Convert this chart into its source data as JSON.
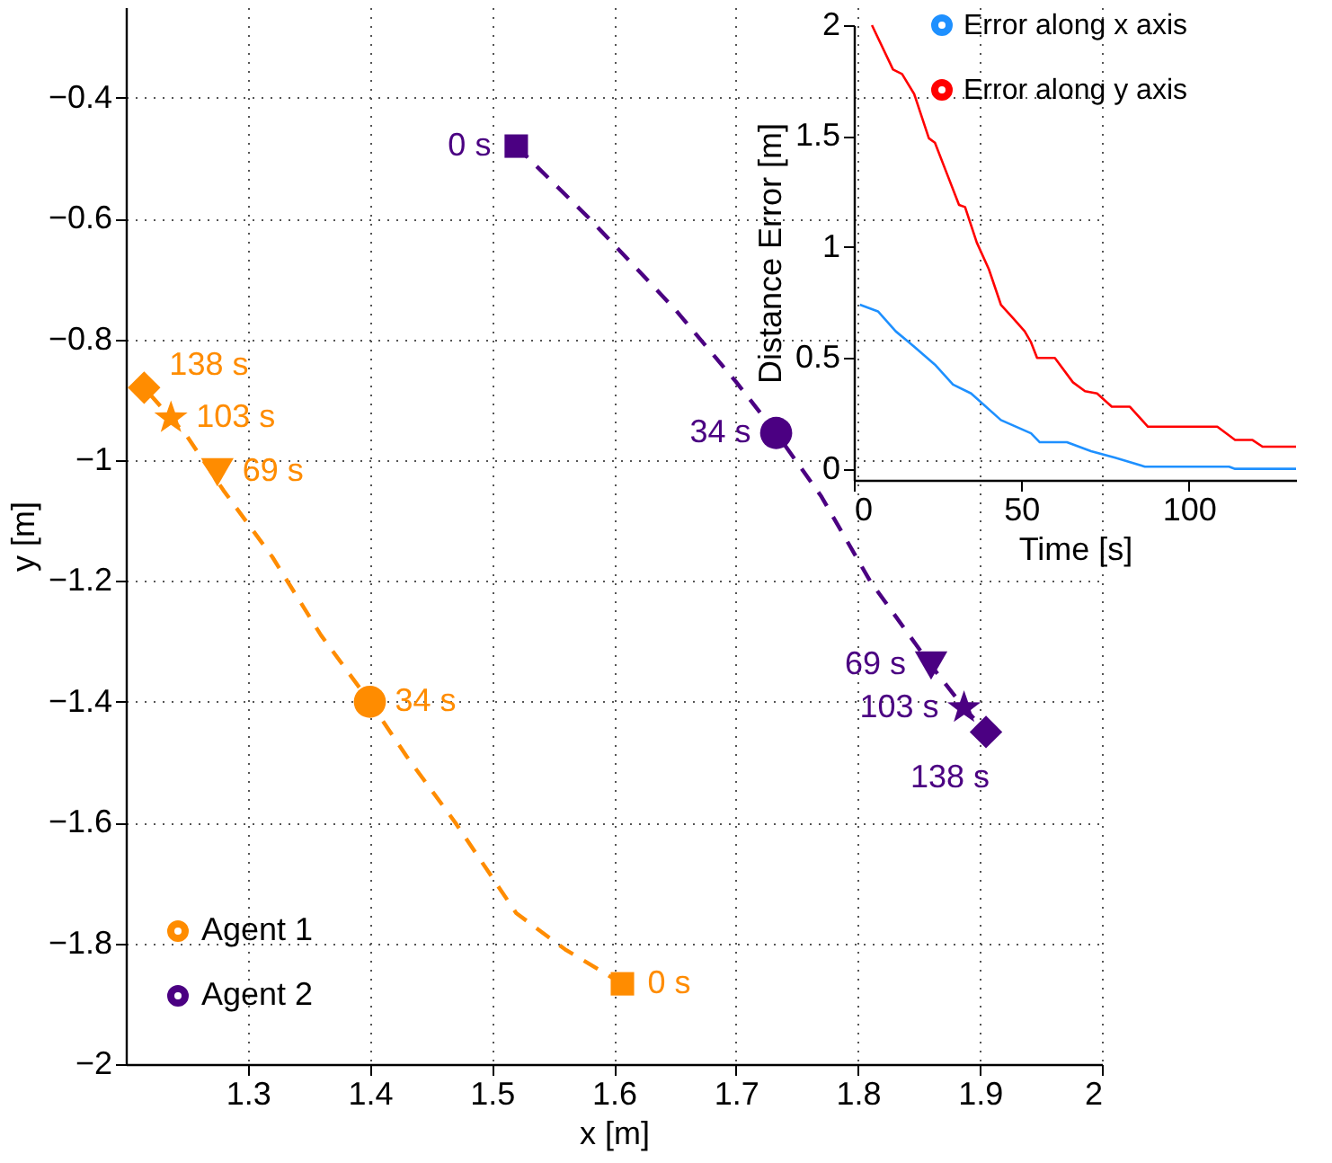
{
  "chart_data": [
    {
      "type": "line",
      "xlabel": "x [m]",
      "ylabel": "y [m]",
      "xlim": [
        1.2,
        2
      ],
      "ylim": [
        -2,
        -0.25
      ],
      "xticks": [
        1.3,
        1.4,
        1.5,
        1.6,
        1.7,
        1.8,
        1.9,
        2
      ],
      "yticks": [
        -2,
        -1.8,
        -1.6,
        -1.4,
        -1.2,
        -1,
        -0.8,
        -0.6,
        -0.4
      ],
      "grid": true,
      "legend": "bottom left",
      "annotations": [
        {
          "text": "0 s",
          "x": 1.607,
          "y": -1.867
        },
        {
          "text": "34 s",
          "x": 1.4,
          "y": -1.4
        },
        {
          "text": "69 s",
          "x": 1.275,
          "y": -1.02
        },
        {
          "text": "103 s",
          "x": 1.237,
          "y": -0.93
        },
        {
          "text": "138 s",
          "x": 1.215,
          "y": -0.88
        },
        {
          "text": "0 s",
          "x": 1.52,
          "y": -0.48
        },
        {
          "text": "34 s",
          "x": 1.733,
          "y": -0.955
        },
        {
          "text": "69 s",
          "x": 1.86,
          "y": -1.34
        },
        {
          "text": "103 s",
          "x": 1.887,
          "y": -1.41
        },
        {
          "text": "138 s",
          "x": 1.905,
          "y": -1.45
        }
      ],
      "series": [
        {
          "name": "Agent 1",
          "color": "#ff8c00",
          "line_style": "dashed",
          "marker": "none",
          "x": [
            1.607,
            1.56,
            1.52,
            1.47,
            1.43,
            1.4,
            1.36,
            1.32,
            1.28,
            1.25,
            1.215
          ],
          "values": [
            -1.867,
            -1.81,
            -1.75,
            -1.6,
            -1.49,
            -1.4,
            -1.29,
            -1.16,
            -1.05,
            -0.96,
            -0.88
          ]
        },
        {
          "name": "Agent 2",
          "color": "#4b0082",
          "line_style": "dashed",
          "marker": "none",
          "x": [
            1.52,
            1.58,
            1.65,
            1.7,
            1.733,
            1.77,
            1.81,
            1.86,
            1.887,
            1.905
          ],
          "values": [
            -0.48,
            -0.6,
            -0.75,
            -0.87,
            -0.955,
            -1.06,
            -1.2,
            -1.34,
            -1.41,
            -1.45
          ]
        },
        {
          "type": "scatter",
          "marker": "square",
          "x": [
            1.607,
            1.52
          ],
          "values": [
            -1.867,
            -0.48
          ],
          "colors": [
            "#ff8c00",
            "#4b0082"
          ]
        },
        {
          "type": "scatter",
          "marker": "circle",
          "x": [
            1.4,
            1.733
          ],
          "values": [
            -1.4,
            -0.955
          ],
          "colors": [
            "#ff8c00",
            "#4b0082"
          ]
        },
        {
          "type": "scatter",
          "marker": "triangle",
          "x": [
            1.275,
            1.86
          ],
          "values": [
            -1.02,
            -1.34
          ],
          "colors": [
            "#ff8c00",
            "#4b0082"
          ]
        },
        {
          "type": "scatter",
          "marker": "star",
          "x": [
            1.237,
            1.887
          ],
          "values": [
            -0.93,
            -1.41
          ],
          "colors": [
            "#ff8c00",
            "#4b0082"
          ]
        },
        {
          "type": "scatter",
          "marker": "diamond",
          "x": [
            1.215,
            1.905
          ],
          "values": [
            -0.88,
            -1.45
          ],
          "colors": [
            "#ff8c00",
            "#4b0082"
          ]
        }
      ]
    },
    {
      "type": "line",
      "xlabel": "Time [s]",
      "ylabel": "Distance Error [m]",
      "xlim": [
        0,
        132
      ],
      "ylim": [
        -0.05,
        2
      ],
      "xticks": [
        0,
        50,
        100
      ],
      "yticks": [
        0,
        0.5,
        1,
        1.5,
        2
      ],
      "legend": "top right",
      "series": [
        {
          "name": "Error along x axis",
          "color": "#1e90ff",
          "x": [
            1.8,
            7.2,
            12.5,
            16.5,
            24.2,
            29.6,
            35,
            43.9,
            52.9,
            55.5,
            63.6,
            70.8,
            78,
            86.9,
            112,
            113.8,
            121,
            132
          ],
          "values": [
            0.74,
            0.71,
            0.62,
            0.57,
            0.47,
            0.38,
            0.34,
            0.22,
            0.16,
            0.12,
            0.12,
            0.08,
            0.05,
            0.01,
            0.01,
            0.0,
            0.0,
            0.0
          ]
        },
        {
          "name": "Error along y axis",
          "color": "#ff0000",
          "x": [
            5.4,
            11.7,
            14.4,
            18,
            22.4,
            24.2,
            27.8,
            31.4,
            33.2,
            36.7,
            40.3,
            43.9,
            47.5,
            51,
            52.9,
            54.7,
            60,
            65.4,
            69,
            72.6,
            77,
            82.4,
            87.8,
            108.5,
            113.8,
            119,
            122,
            132
          ],
          "values": [
            2.0,
            1.8,
            1.78,
            1.69,
            1.49,
            1.47,
            1.33,
            1.19,
            1.18,
            1.02,
            0.9,
            0.74,
            0.68,
            0.62,
            0.57,
            0.5,
            0.5,
            0.39,
            0.35,
            0.34,
            0.28,
            0.28,
            0.19,
            0.19,
            0.13,
            0.13,
            0.1,
            0.1
          ]
        }
      ]
    }
  ]
}
